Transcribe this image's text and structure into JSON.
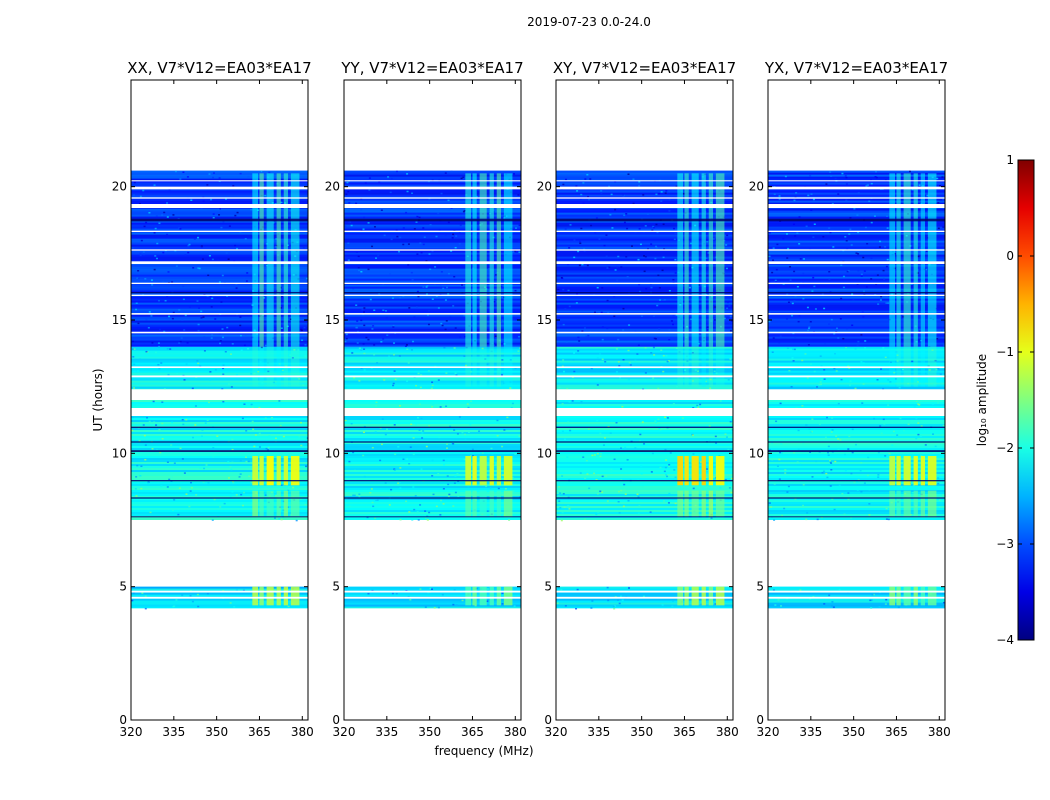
{
  "chart_data": {
    "type": "heatmap",
    "suptitle": "2019-07-23 0.0-24.0",
    "xlabel": "frequency (MHz)",
    "ylabel": "UT (hours)",
    "xlim": [
      320,
      382
    ],
    "ylim": [
      0,
      24
    ],
    "x_ticks": [
      320,
      335,
      350,
      365,
      380
    ],
    "y_ticks": [
      0,
      5,
      10,
      15,
      20
    ],
    "panels": [
      {
        "title": "XX, V7*V12=EA03*EA17",
        "bright": {
          "early": -1.3,
          "mid": -1.0,
          "late": -1.9
        },
        "segments": [
          {
            "ut": [
              4.2,
              5.0
            ],
            "log10_amplitude": -2.3
          },
          {
            "ut": [
              7.5,
              11.4
            ],
            "log10_amplitude": -2.1
          },
          {
            "ut": [
              11.7,
              12.0
            ],
            "log10_amplitude": -2.1
          },
          {
            "ut": [
              12.4,
              14.0
            ],
            "log10_amplitude": -2.2
          },
          {
            "ut": [
              14.0,
              20.6
            ],
            "log10_amplitude": -3.1
          }
        ]
      },
      {
        "title": "YY, V7*V12=EA03*EA17",
        "bright": {
          "early": -1.6,
          "mid": -1.1,
          "late": -1.9
        },
        "segments": [
          {
            "ut": [
              4.2,
              5.0
            ],
            "log10_amplitude": -2.3
          },
          {
            "ut": [
              7.5,
              11.4
            ],
            "log10_amplitude": -2.1
          },
          {
            "ut": [
              11.7,
              12.0
            ],
            "log10_amplitude": -2.1
          },
          {
            "ut": [
              12.4,
              14.0
            ],
            "log10_amplitude": -2.2
          },
          {
            "ut": [
              14.0,
              20.6
            ],
            "log10_amplitude": -3.1
          }
        ]
      },
      {
        "title": "XY, V7*V12=EA03*EA17",
        "bright": {
          "early": -1.3,
          "mid": -0.8,
          "late": -1.9
        },
        "segments": [
          {
            "ut": [
              4.2,
              5.0
            ],
            "log10_amplitude": -2.3
          },
          {
            "ut": [
              7.5,
              11.4
            ],
            "log10_amplitude": -2.1
          },
          {
            "ut": [
              11.7,
              12.0
            ],
            "log10_amplitude": -2.1
          },
          {
            "ut": [
              12.4,
              14.0
            ],
            "log10_amplitude": -2.2
          },
          {
            "ut": [
              14.0,
              20.6
            ],
            "log10_amplitude": -3.1
          }
        ]
      },
      {
        "title": "YX, V7*V12=EA03*EA17",
        "bright": {
          "early": -1.6,
          "mid": -1.1,
          "late": -2.0
        },
        "segments": [
          {
            "ut": [
              4.2,
              5.0
            ],
            "log10_amplitude": -2.3
          },
          {
            "ut": [
              7.5,
              11.4
            ],
            "log10_amplitude": -2.1
          },
          {
            "ut": [
              11.7,
              12.0
            ],
            "log10_amplitude": -2.1
          },
          {
            "ut": [
              12.4,
              14.0
            ],
            "log10_amplitude": -2.2
          },
          {
            "ut": [
              14.0,
              20.6
            ],
            "log10_amplitude": -3.1
          }
        ]
      }
    ],
    "colorbar": {
      "label": "log₁₀ amplitude",
      "range": [
        -4,
        1
      ],
      "ticks": [
        "1",
        "0",
        "−1",
        "−2",
        "−3",
        "−4"
      ],
      "colormap": "jet"
    }
  }
}
